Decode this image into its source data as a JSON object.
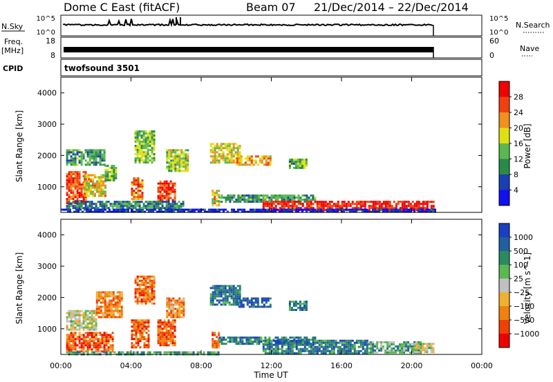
{
  "header": {
    "title": "Dome C East (fitACF)",
    "beam": "Beam 07",
    "dates": "21/Dec/2014 – 22/Dec/2014"
  },
  "strips": {
    "nsky_label": "N.Sky",
    "nsky_top": "10^5",
    "nsky_bottom": "10^0",
    "nsearch_label": "N.Search",
    "nsearch_top": "10^5",
    "nsearch_bottom": "10^0",
    "freq_label": "Freq.",
    "freq_unit": "[MHz]",
    "freq_top": "18",
    "freq_bottom": "8",
    "nave_label": "Nave",
    "nave_top": "60",
    "nave_bottom": "0",
    "cpid_label": "CPID",
    "cpid_value": "twofsound 3501"
  },
  "chart_data": [
    {
      "type": "heatmap",
      "name": "power",
      "ylabel": "Slant Range [km]",
      "colorbar_label": "Power [dB]",
      "ylim": [
        180,
        4500
      ],
      "xlim_hours": [
        0,
        24
      ],
      "yticks": [
        "1000",
        "2000",
        "3000",
        "4000"
      ],
      "colorbar_ticks": [
        "4",
        "8",
        "12",
        "16",
        "20",
        "24",
        "28"
      ],
      "colors": [
        "#1010f0",
        "#1a3fb0",
        "#2a8a4a",
        "#5ab850",
        "#dfe010",
        "#f09020",
        "#f04010",
        "#f00000"
      ],
      "regions": [
        {
          "t0": 0.3,
          "t1": 1.4,
          "r0": 500,
          "r1": 1500,
          "level": 0.8
        },
        {
          "t0": 0.3,
          "t1": 2.5,
          "r0": 1700,
          "r1": 2200,
          "level": 0.35
        },
        {
          "t0": 1.3,
          "t1": 2.6,
          "r0": 700,
          "r1": 1400,
          "level": 0.6
        },
        {
          "t0": 2.5,
          "t1": 3.2,
          "r0": 1200,
          "r1": 1700,
          "level": 0.45
        },
        {
          "t0": 4.0,
          "t1": 4.6,
          "r0": 600,
          "r1": 1300,
          "level": 0.75
        },
        {
          "t0": 4.2,
          "t1": 5.3,
          "r0": 1800,
          "r1": 2800,
          "level": 0.45
        },
        {
          "t0": 5.5,
          "t1": 6.5,
          "r0": 600,
          "r1": 1200,
          "level": 0.85
        },
        {
          "t0": 6.0,
          "t1": 7.2,
          "r0": 1500,
          "r1": 2200,
          "level": 0.5
        },
        {
          "t0": 8.5,
          "t1": 10.2,
          "r0": 1800,
          "r1": 2400,
          "level": 0.55
        },
        {
          "t0": 10.0,
          "t1": 12.0,
          "r0": 1700,
          "r1": 2000,
          "level": 0.65
        },
        {
          "t0": 8.6,
          "t1": 9.0,
          "r0": 400,
          "r1": 900,
          "level": 0.6
        },
        {
          "t0": 9.0,
          "t1": 14.5,
          "r0": 500,
          "r1": 750,
          "level": 0.35
        },
        {
          "t0": 11.5,
          "t1": 21.3,
          "r0": 250,
          "r1": 550,
          "level": 0.92
        },
        {
          "t0": 0.0,
          "t1": 21.3,
          "r0": 180,
          "r1": 300,
          "level": 0.1
        },
        {
          "t0": 13.0,
          "t1": 14.0,
          "r0": 1600,
          "r1": 1900,
          "level": 0.4
        },
        {
          "t0": 0.3,
          "t1": 7.0,
          "r0": 300,
          "r1": 550,
          "level": 0.3
        }
      ]
    },
    {
      "type": "heatmap",
      "name": "velocity",
      "ylabel": "Slant Range [km]",
      "colorbar_label": "Velocity [m s^-1]",
      "ylim": [
        180,
        4500
      ],
      "xlim_hours": [
        0,
        24
      ],
      "xlabel": "Time UT",
      "xticks": [
        "00:00",
        "04:00",
        "08:00",
        "12:00",
        "16:00",
        "20:00",
        "00:00"
      ],
      "yticks": [
        "1000",
        "2000",
        "3000",
        "4000"
      ],
      "colorbar_ticks": [
        "1000",
        "500",
        "100",
        "25",
        "−25",
        "−100",
        "−500",
        "−1000"
      ],
      "colors": [
        "#1a3fc0",
        "#2060a0",
        "#2a8a60",
        "#5ab850",
        "#c0c0c0",
        "#f0b030",
        "#f08010",
        "#f04000",
        "#f00000"
      ],
      "regions": [
        {
          "t0": 0.3,
          "t1": 3.0,
          "r0": 300,
          "r1": 900,
          "level": 0.8
        },
        {
          "t0": 0.3,
          "t1": 2.0,
          "r0": 1000,
          "r1": 1600,
          "level": 0.5
        },
        {
          "t0": 2.0,
          "t1": 3.5,
          "r0": 1400,
          "r1": 2200,
          "level": 0.7
        },
        {
          "t0": 4.0,
          "t1": 5.0,
          "r0": 400,
          "r1": 1300,
          "level": 0.8
        },
        {
          "t0": 4.2,
          "t1": 5.3,
          "r0": 1800,
          "r1": 2700,
          "level": 0.75
        },
        {
          "t0": 5.5,
          "t1": 6.5,
          "r0": 500,
          "r1": 1300,
          "level": 0.8
        },
        {
          "t0": 6.0,
          "t1": 7.0,
          "r0": 1400,
          "r1": 2000,
          "level": 0.7
        },
        {
          "t0": 8.5,
          "t1": 10.2,
          "r0": 1800,
          "r1": 2400,
          "level": 0.22
        },
        {
          "t0": 10.0,
          "t1": 12.0,
          "r0": 1700,
          "r1": 2000,
          "level": 0.1
        },
        {
          "t0": 8.6,
          "t1": 9.0,
          "r0": 400,
          "r1": 900,
          "level": 0.8
        },
        {
          "t0": 9.0,
          "t1": 14.5,
          "r0": 500,
          "r1": 750,
          "level": 0.25
        },
        {
          "t0": 11.5,
          "t1": 17.5,
          "r0": 250,
          "r1": 650,
          "level": 0.22
        },
        {
          "t0": 17.5,
          "t1": 20.5,
          "r0": 250,
          "r1": 600,
          "level": 0.35
        },
        {
          "t0": 20.0,
          "t1": 21.3,
          "r0": 250,
          "r1": 550,
          "level": 0.5
        },
        {
          "t0": 13.0,
          "t1": 14.0,
          "r0": 1600,
          "r1": 1900,
          "level": 0.25
        },
        {
          "t0": 0.3,
          "t1": 9.0,
          "r0": 180,
          "r1": 280,
          "level": 0.35
        }
      ]
    }
  ]
}
